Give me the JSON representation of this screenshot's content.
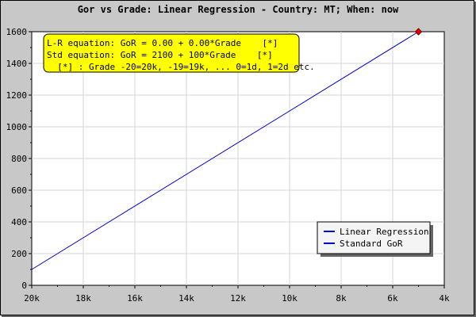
{
  "chart_data": {
    "type": "line",
    "title": "Gor vs Grade: Linear Regression - Country: MT; When: now",
    "xlabel": "",
    "ylabel": "",
    "x_tick_labels": [
      "20k",
      "18k",
      "16k",
      "14k",
      "12k",
      "10k",
      "8k",
      "6k",
      "4k"
    ],
    "x_tick_values": [
      -20,
      -18,
      -16,
      -14,
      -12,
      -10,
      -8,
      -6,
      -4
    ],
    "xlim": [
      -20,
      -4
    ],
    "ylim": [
      0,
      1600
    ],
    "y_ticks": [
      0,
      200,
      400,
      600,
      800,
      1000,
      1200,
      1400,
      1600
    ],
    "grid": true,
    "legend_position": "bottom-right",
    "series": [
      {
        "name": "Linear Regression",
        "color": "#0000cc",
        "x": [],
        "y": []
      },
      {
        "name": "Standard GoR",
        "color": "#0000cc",
        "x": [
          -20,
          -5
        ],
        "y": [
          100,
          1600
        ]
      }
    ],
    "marker": {
      "x": -5,
      "y": 1600,
      "color": "#e00000"
    },
    "annotation": {
      "lines": [
        "L-R equation: GoR = 0.00 + 0.00*Grade    [*]",
        "Std equation: GoR = 2100 + 100*Grade    [*]",
        "  [*] : Grade -20=20k, -19=19k, ... 0=1d, 1=2d etc."
      ],
      "background": "#ffff00"
    }
  }
}
